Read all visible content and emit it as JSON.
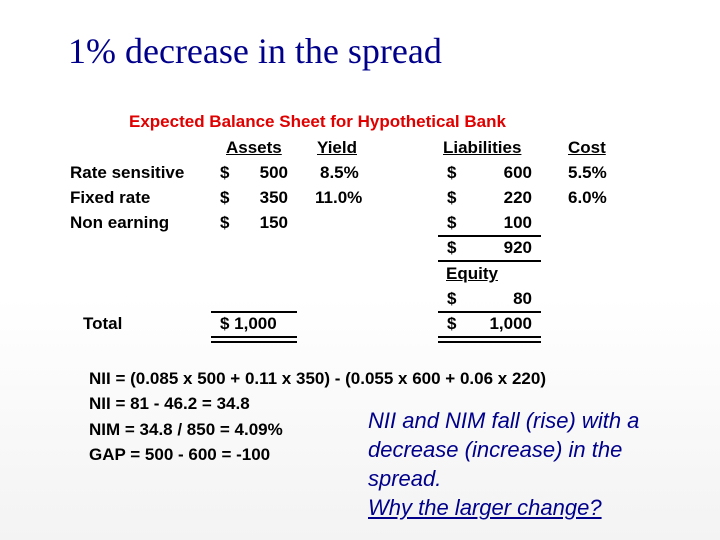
{
  "slide": {
    "title": "1% decrease in the spread"
  },
  "sheet": {
    "title": "Expected Balance Sheet for Hypothetical Bank",
    "headers": {
      "assets": "Assets",
      "yield": "Yield",
      "liabilities": "Liabilities",
      "cost": "Cost"
    },
    "rows": [
      {
        "label": "Rate sensitive",
        "asset_cur": "$",
        "asset": "500",
        "yield": "8.5%",
        "liab_cur": "$",
        "liab": "600",
        "cost": "5.5%"
      },
      {
        "label": "Fixed rate",
        "asset_cur": "$",
        "asset": "350",
        "yield": "11.0%",
        "liab_cur": "$",
        "liab": "220",
        "cost": "6.0%"
      },
      {
        "label": "Non earning",
        "asset_cur": "$",
        "asset": "150",
        "liab_cur": "$",
        "liab": "100"
      }
    ],
    "liab_subtotal_cur": "$",
    "liab_subtotal": "920",
    "equity_label": "Equity",
    "equity_cur": "$",
    "equity": "80",
    "total_label": "Total",
    "total_assets": "$ 1,000",
    "total_liab_cur": "$",
    "total_liab": "1,000"
  },
  "calculations": [
    "NII = (0.085 x 500 + 0.11 x 350) - (0.055 x 600 + 0.06 x 220)",
    "NII = 81 - 46.2 = 34.8",
    "NIM = 34.8 / 850  = 4.09%",
    "GAP = 500 - 600 = -100"
  ],
  "note": {
    "lines": [
      "NII and NIM fall (rise) with a",
      "decrease (increase) in the",
      "spread."
    ],
    "question": "Why the larger change?"
  },
  "colors": {
    "title": "#00008b",
    "sheet_title": "#e00000",
    "note": "#00008b"
  }
}
